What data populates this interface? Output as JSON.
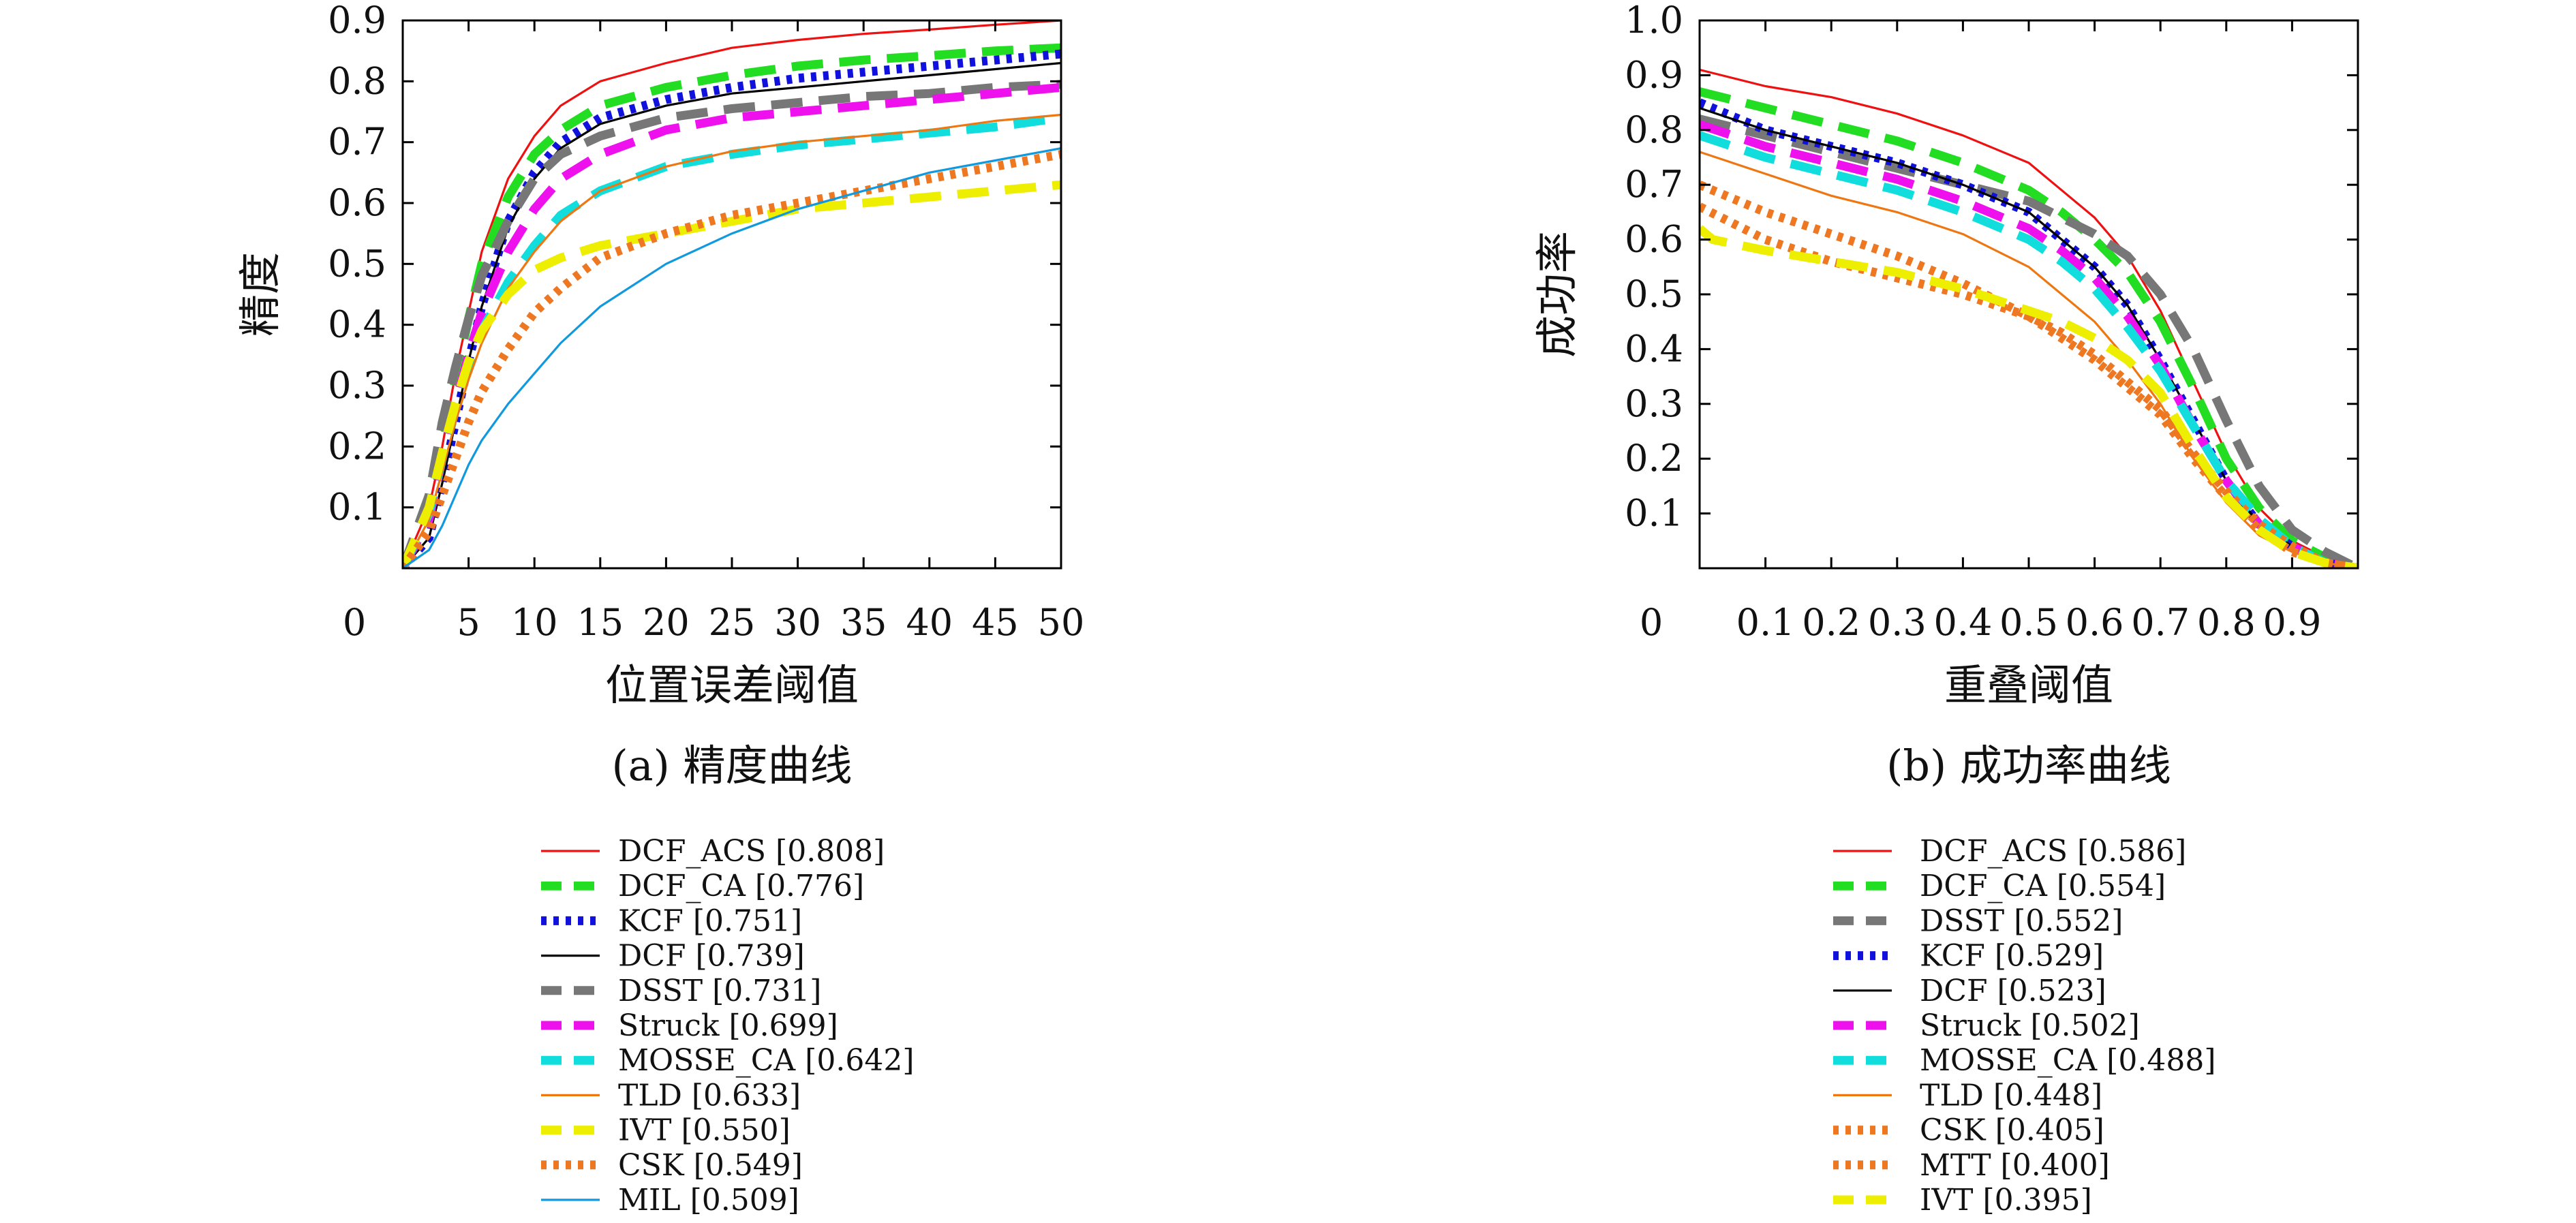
{
  "figure": {
    "panels": [
      {
        "caption": "(a) 精度曲线",
        "x_axis_title": "位置误差阈值",
        "y_axis_title": "精度",
        "x_zero_label": "0",
        "x_tick_labels": [
          "5",
          "10",
          "15",
          "20",
          "25",
          "30",
          "35",
          "40",
          "45",
          "50"
        ],
        "y_tick_labels": [
          "0.1",
          "0.2",
          "0.3",
          "0.4",
          "0.5",
          "0.6",
          "0.7",
          "0.8",
          "0.9"
        ],
        "legend": [
          {
            "name": "DCF_ACS",
            "label": "DCF_ACS [0.808]"
          },
          {
            "name": "DCF_CA",
            "label": "DCF_CA [0.776]"
          },
          {
            "name": "KCF",
            "label": "KCF [0.751]"
          },
          {
            "name": "DCF",
            "label": "DCF [0.739]"
          },
          {
            "name": "DSST",
            "label": "DSST [0.731]"
          },
          {
            "name": "Struck",
            "label": "Struck [0.699]"
          },
          {
            "name": "MOSSE_CA",
            "label": "MOSSE_CA [0.642]"
          },
          {
            "name": "TLD",
            "label": "TLD [0.633]"
          },
          {
            "name": "IVT",
            "label": "IVT [0.550]"
          },
          {
            "name": "CSK",
            "label": "CSK [0.549]"
          },
          {
            "name": "MIL",
            "label": "MIL [0.509]"
          }
        ]
      },
      {
        "caption": "(b) 成功率曲线",
        "x_axis_title": "重叠阈值",
        "y_axis_title": "成功率",
        "x_zero_label": "0",
        "x_tick_labels": [
          "0.1",
          "0.2",
          "0.3",
          "0.4",
          "0.5",
          "0.6",
          "0.7",
          "0.8",
          "0.9"
        ],
        "y_tick_labels": [
          "0.1",
          "0.2",
          "0.3",
          "0.4",
          "0.5",
          "0.6",
          "0.7",
          "0.8",
          "0.9",
          "1.0"
        ],
        "legend": [
          {
            "name": "DCF_ACS",
            "label": "DCF_ACS [0.586]"
          },
          {
            "name": "DCF_CA",
            "label": "DCF_CA [0.554]"
          },
          {
            "name": "DSST",
            "label": "DSST [0.552]"
          },
          {
            "name": "KCF",
            "label": "KCF [0.529]"
          },
          {
            "name": "DCF",
            "label": "DCF [0.523]"
          },
          {
            "name": "Struck",
            "label": "Struck [0.502]"
          },
          {
            "name": "MOSSE_CA",
            "label": "MOSSE_CA [0.488]"
          },
          {
            "name": "TLD",
            "label": "TLD [0.448]"
          },
          {
            "name": "CSK",
            "label": "CSK [0.405]"
          },
          {
            "name": "MTT",
            "label": "MTT [0.400]"
          },
          {
            "name": "IVT",
            "label": "IVT [0.395]"
          }
        ]
      }
    ]
  },
  "styles": {
    "DCF_ACS": {
      "color": "#ee1111",
      "dash": "solid",
      "weight": "thin"
    },
    "DCF_CA": {
      "color": "#22dd22",
      "dash": "long-dash",
      "weight": "thick"
    },
    "KCF": {
      "color": "#1111dd",
      "dash": "dot",
      "weight": "thick"
    },
    "DSST": {
      "color": "#777777",
      "dash": "long-dash",
      "weight": "thick"
    },
    "DCF": {
      "color": "#000000",
      "dash": "solid",
      "weight": "thin"
    },
    "Struck": {
      "color": "#ee11ee",
      "dash": "long-dash",
      "weight": "thick"
    },
    "MOSSE_CA": {
      "color": "#11dddd",
      "dash": "long-dash",
      "weight": "thick"
    },
    "TLD": {
      "color": "#ee7711",
      "dash": "solid",
      "weight": "thin"
    },
    "IVT": {
      "color": "#eeee00",
      "dash": "long-dash",
      "weight": "thick"
    },
    "CSK": {
      "color": "#ee7722",
      "dash": "dot",
      "weight": "thick"
    },
    "MTT": {
      "color": "#ee7722",
      "dash": "dot",
      "weight": "thick"
    },
    "MIL": {
      "color": "#1199dd",
      "dash": "solid",
      "weight": "thin"
    }
  },
  "chart_data": [
    {
      "type": "line",
      "title": "(a) 精度曲线",
      "xlabel": "位置误差阈值",
      "ylabel": "精度",
      "xlim": [
        0,
        50
      ],
      "ylim": [
        0,
        0.9
      ],
      "grid": false,
      "legend_position": "below",
      "series": [
        {
          "name": "DCF_ACS",
          "x": [
            0,
            2,
            3,
            4,
            5,
            6,
            8,
            10,
            12,
            15,
            20,
            25,
            30,
            35,
            40,
            45,
            50
          ],
          "y": [
            0,
            0.1,
            0.2,
            0.32,
            0.42,
            0.52,
            0.64,
            0.71,
            0.76,
            0.8,
            0.83,
            0.855,
            0.868,
            0.878,
            0.885,
            0.893,
            0.9
          ]
        },
        {
          "name": "DCF_CA",
          "x": [
            0,
            2,
            3,
            4,
            5,
            6,
            8,
            10,
            12,
            15,
            20,
            25,
            30,
            35,
            40,
            45,
            50
          ],
          "y": [
            0,
            0.1,
            0.2,
            0.31,
            0.41,
            0.5,
            0.61,
            0.68,
            0.72,
            0.76,
            0.79,
            0.81,
            0.825,
            0.835,
            0.842,
            0.85,
            0.855
          ]
        },
        {
          "name": "KCF",
          "x": [
            0,
            2,
            3,
            4,
            5,
            6,
            8,
            10,
            12,
            15,
            20,
            25,
            30,
            35,
            40,
            45,
            50
          ],
          "y": [
            0,
            0.05,
            0.14,
            0.24,
            0.34,
            0.43,
            0.57,
            0.65,
            0.7,
            0.74,
            0.77,
            0.79,
            0.805,
            0.815,
            0.825,
            0.835,
            0.845
          ]
        },
        {
          "name": "DCF",
          "x": [
            0,
            2,
            3,
            4,
            5,
            6,
            8,
            10,
            12,
            15,
            20,
            25,
            30,
            35,
            40,
            45,
            50
          ],
          "y": [
            0,
            0.05,
            0.14,
            0.24,
            0.34,
            0.43,
            0.56,
            0.64,
            0.69,
            0.73,
            0.76,
            0.78,
            0.79,
            0.8,
            0.81,
            0.82,
            0.83
          ]
        },
        {
          "name": "DSST",
          "x": [
            0,
            2,
            3,
            4,
            5,
            6,
            8,
            10,
            12,
            15,
            20,
            25,
            30,
            35,
            40,
            45,
            50
          ],
          "y": [
            0,
            0.12,
            0.24,
            0.33,
            0.41,
            0.48,
            0.57,
            0.64,
            0.68,
            0.71,
            0.74,
            0.755,
            0.765,
            0.775,
            0.78,
            0.79,
            0.795
          ]
        },
        {
          "name": "Struck",
          "x": [
            0,
            2,
            3,
            4,
            5,
            6,
            8,
            10,
            12,
            15,
            20,
            25,
            30,
            35,
            40,
            45,
            50
          ],
          "y": [
            0,
            0.08,
            0.18,
            0.27,
            0.35,
            0.42,
            0.52,
            0.59,
            0.64,
            0.68,
            0.72,
            0.74,
            0.75,
            0.76,
            0.77,
            0.78,
            0.79
          ]
        },
        {
          "name": "MOSSE_CA",
          "x": [
            0,
            2,
            3,
            4,
            5,
            6,
            8,
            10,
            12,
            15,
            20,
            25,
            30,
            35,
            40,
            45,
            50
          ],
          "y": [
            0,
            0.09,
            0.18,
            0.26,
            0.33,
            0.39,
            0.47,
            0.53,
            0.58,
            0.62,
            0.66,
            0.68,
            0.695,
            0.705,
            0.715,
            0.725,
            0.74
          ]
        },
        {
          "name": "TLD",
          "x": [
            0,
            2,
            3,
            4,
            5,
            6,
            8,
            10,
            12,
            15,
            20,
            25,
            30,
            35,
            40,
            45,
            50
          ],
          "y": [
            0,
            0.08,
            0.16,
            0.24,
            0.31,
            0.37,
            0.46,
            0.52,
            0.57,
            0.62,
            0.66,
            0.685,
            0.7,
            0.71,
            0.72,
            0.735,
            0.745
          ]
        },
        {
          "name": "IVT",
          "x": [
            0,
            2,
            3,
            4,
            5,
            6,
            8,
            10,
            12,
            15,
            20,
            25,
            30,
            35,
            40,
            45,
            50
          ],
          "y": [
            0,
            0.1,
            0.19,
            0.27,
            0.34,
            0.39,
            0.45,
            0.49,
            0.51,
            0.53,
            0.55,
            0.57,
            0.59,
            0.6,
            0.61,
            0.62,
            0.63
          ]
        },
        {
          "name": "CSK",
          "x": [
            0,
            2,
            3,
            4,
            5,
            6,
            8,
            10,
            12,
            15,
            20,
            25,
            30,
            35,
            40,
            45,
            50
          ],
          "y": [
            0,
            0.06,
            0.12,
            0.18,
            0.24,
            0.29,
            0.36,
            0.42,
            0.46,
            0.51,
            0.55,
            0.58,
            0.6,
            0.62,
            0.64,
            0.66,
            0.68
          ]
        },
        {
          "name": "MIL",
          "x": [
            0,
            2,
            3,
            4,
            5,
            6,
            8,
            10,
            12,
            15,
            20,
            25,
            30,
            35,
            40,
            45,
            50
          ],
          "y": [
            0,
            0.03,
            0.07,
            0.12,
            0.17,
            0.21,
            0.27,
            0.32,
            0.37,
            0.43,
            0.5,
            0.55,
            0.59,
            0.62,
            0.65,
            0.67,
            0.69
          ]
        }
      ]
    },
    {
      "type": "line",
      "title": "(b) 成功率曲线",
      "xlabel": "重叠阈值",
      "ylabel": "成功率",
      "xlim": [
        0,
        1
      ],
      "ylim": [
        0,
        1
      ],
      "grid": false,
      "legend_position": "below",
      "series": [
        {
          "name": "DCF_ACS",
          "x": [
            0,
            0.1,
            0.2,
            0.3,
            0.4,
            0.5,
            0.55,
            0.6,
            0.65,
            0.7,
            0.75,
            0.8,
            0.85,
            0.9,
            0.95,
            1.0
          ],
          "y": [
            0.91,
            0.88,
            0.86,
            0.83,
            0.79,
            0.74,
            0.69,
            0.64,
            0.57,
            0.47,
            0.34,
            0.21,
            0.11,
            0.05,
            0.02,
            0
          ]
        },
        {
          "name": "DCF_CA",
          "x": [
            0,
            0.1,
            0.2,
            0.3,
            0.4,
            0.5,
            0.55,
            0.6,
            0.65,
            0.7,
            0.75,
            0.8,
            0.85,
            0.9,
            0.95,
            1.0
          ],
          "y": [
            0.87,
            0.84,
            0.81,
            0.78,
            0.74,
            0.69,
            0.65,
            0.6,
            0.54,
            0.45,
            0.33,
            0.2,
            0.11,
            0.05,
            0.02,
            0
          ]
        },
        {
          "name": "DSST",
          "x": [
            0,
            0.1,
            0.2,
            0.3,
            0.4,
            0.5,
            0.55,
            0.6,
            0.65,
            0.7,
            0.75,
            0.8,
            0.85,
            0.9,
            0.95,
            1.0
          ],
          "y": [
            0.82,
            0.79,
            0.76,
            0.73,
            0.7,
            0.67,
            0.64,
            0.61,
            0.57,
            0.5,
            0.4,
            0.27,
            0.15,
            0.07,
            0.03,
            0
          ]
        },
        {
          "name": "KCF",
          "x": [
            0,
            0.1,
            0.2,
            0.3,
            0.4,
            0.5,
            0.55,
            0.6,
            0.65,
            0.7,
            0.75,
            0.8,
            0.85,
            0.9,
            0.95,
            1.0
          ],
          "y": [
            0.85,
            0.8,
            0.77,
            0.74,
            0.7,
            0.65,
            0.6,
            0.55,
            0.48,
            0.38,
            0.27,
            0.16,
            0.08,
            0.04,
            0.01,
            0
          ]
        },
        {
          "name": "DCF",
          "x": [
            0,
            0.1,
            0.2,
            0.3,
            0.4,
            0.5,
            0.55,
            0.6,
            0.65,
            0.7,
            0.75,
            0.8,
            0.85,
            0.9,
            0.95,
            1.0
          ],
          "y": [
            0.84,
            0.8,
            0.77,
            0.74,
            0.7,
            0.65,
            0.6,
            0.55,
            0.48,
            0.38,
            0.27,
            0.16,
            0.08,
            0.04,
            0.01,
            0
          ]
        },
        {
          "name": "Struck",
          "x": [
            0,
            0.1,
            0.2,
            0.3,
            0.4,
            0.5,
            0.55,
            0.6,
            0.65,
            0.7,
            0.75,
            0.8,
            0.85,
            0.9,
            0.95,
            1.0
          ],
          "y": [
            0.81,
            0.77,
            0.74,
            0.71,
            0.67,
            0.62,
            0.58,
            0.53,
            0.46,
            0.37,
            0.26,
            0.16,
            0.08,
            0.04,
            0.01,
            0
          ]
        },
        {
          "name": "MOSSE_CA",
          "x": [
            0,
            0.1,
            0.2,
            0.3,
            0.4,
            0.5,
            0.55,
            0.6,
            0.65,
            0.7,
            0.75,
            0.8,
            0.85,
            0.9,
            0.95,
            1.0
          ],
          "y": [
            0.79,
            0.75,
            0.72,
            0.69,
            0.65,
            0.6,
            0.56,
            0.51,
            0.44,
            0.36,
            0.26,
            0.16,
            0.09,
            0.04,
            0.01,
            0
          ]
        },
        {
          "name": "TLD",
          "x": [
            0,
            0.1,
            0.2,
            0.3,
            0.4,
            0.5,
            0.55,
            0.6,
            0.65,
            0.7,
            0.75,
            0.8,
            0.85,
            0.9,
            0.95,
            1.0
          ],
          "y": [
            0.76,
            0.72,
            0.68,
            0.65,
            0.61,
            0.55,
            0.5,
            0.45,
            0.38,
            0.3,
            0.2,
            0.12,
            0.06,
            0.03,
            0.01,
            0
          ]
        },
        {
          "name": "CSK",
          "x": [
            0,
            0.1,
            0.2,
            0.3,
            0.4,
            0.5,
            0.55,
            0.6,
            0.65,
            0.7,
            0.75,
            0.8,
            0.85,
            0.9,
            0.95,
            1.0
          ],
          "y": [
            0.7,
            0.65,
            0.61,
            0.57,
            0.52,
            0.46,
            0.42,
            0.38,
            0.33,
            0.28,
            0.2,
            0.13,
            0.07,
            0.03,
            0.01,
            0
          ]
        },
        {
          "name": "MTT",
          "x": [
            0,
            0.1,
            0.2,
            0.3,
            0.4,
            0.5,
            0.55,
            0.6,
            0.65,
            0.7,
            0.75,
            0.8,
            0.85,
            0.9,
            0.95,
            1.0
          ],
          "y": [
            0.66,
            0.6,
            0.56,
            0.53,
            0.5,
            0.46,
            0.43,
            0.39,
            0.34,
            0.29,
            0.21,
            0.14,
            0.08,
            0.04,
            0.01,
            0
          ]
        },
        {
          "name": "IVT",
          "x": [
            0,
            0.02,
            0.1,
            0.2,
            0.3,
            0.4,
            0.5,
            0.55,
            0.6,
            0.65,
            0.7,
            0.75,
            0.8,
            0.85,
            0.9,
            0.95,
            1.0
          ],
          "y": [
            0.62,
            0.6,
            0.58,
            0.56,
            0.54,
            0.51,
            0.47,
            0.45,
            0.42,
            0.38,
            0.32,
            0.22,
            0.13,
            0.07,
            0.03,
            0.01,
            0
          ]
        }
      ]
    }
  ]
}
